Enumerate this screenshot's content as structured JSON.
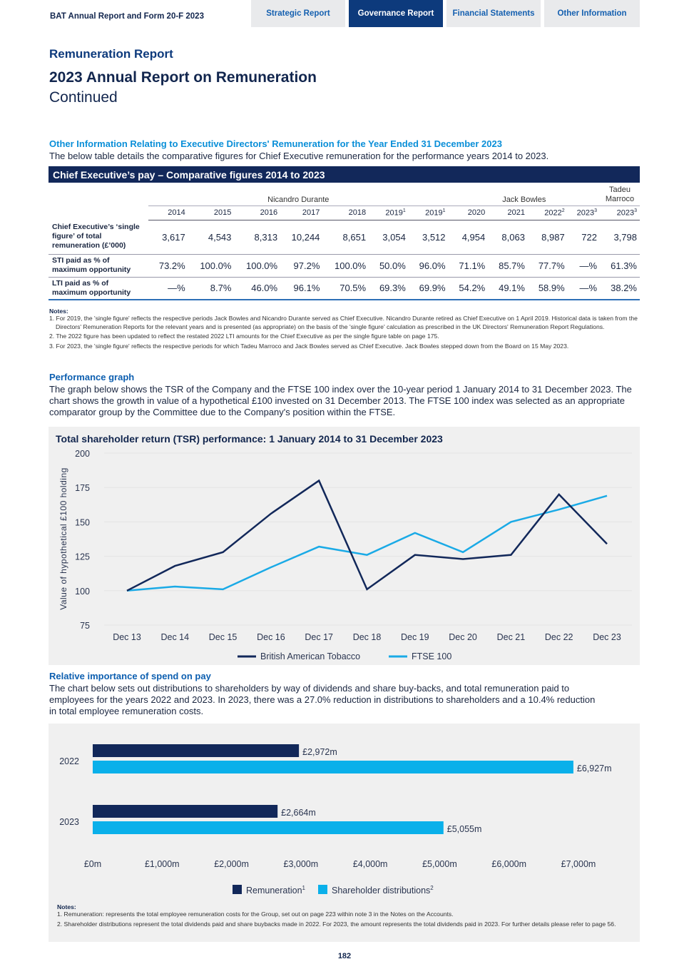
{
  "header": {
    "title": "BAT Annual Report and Form 20-F 2023",
    "tabs": [
      {
        "label": "Strategic Report",
        "active": false
      },
      {
        "label": "Governance Report",
        "active": true
      },
      {
        "label": "Financial Statements",
        "active": false
      },
      {
        "label": "Other Information",
        "active": false
      }
    ]
  },
  "section": "Remuneration Report",
  "title": "2023 Annual Report on Remuneration",
  "subtitle": "Continued",
  "other_info": {
    "heading": "Other Information Relating to Executive Directors' Remuneration for the Year Ended 31 December 2023",
    "text": "The below table details the comparative figures for Chief Executive remuneration for the performance years 2014 to 2023."
  },
  "table": {
    "title": "Chief Executive’s pay – Comparative figures 2014 to 2023",
    "names": [
      "Nicandro Durante",
      "Jack Bowles",
      "Tadeu Marroco"
    ],
    "years": [
      [
        "2014",
        ""
      ],
      [
        "2015",
        ""
      ],
      [
        "2016",
        ""
      ],
      [
        "2017",
        ""
      ],
      [
        "2018",
        ""
      ],
      [
        "2019",
        "1"
      ],
      [
        "2019",
        "1"
      ],
      [
        "2020",
        ""
      ],
      [
        "2021",
        ""
      ],
      [
        "2022",
        "2"
      ],
      [
        "2023",
        "3"
      ],
      [
        "2023",
        "3"
      ]
    ],
    "rows": [
      {
        "label": "Chief Executive’s ‘single figure’ of total remuneration (£’000)",
        "values": [
          "3,617",
          "4,543",
          "8,313",
          "10,244",
          "8,651",
          "3,054",
          "3,512",
          "4,954",
          "8,063",
          "8,987",
          "722",
          "3,798"
        ]
      },
      {
        "label": "STI paid as % of maximum opportunity",
        "values": [
          "73.2%",
          "100.0%",
          "100.0%",
          "97.2%",
          "100.0%",
          "50.0%",
          "96.0%",
          "71.1%",
          "85.7%",
          "77.7%",
          "—%",
          "61.3%"
        ]
      },
      {
        "label": "LTI paid as % of maximum opportunity",
        "values": [
          "—%",
          "8.7%",
          "46.0%",
          "96.1%",
          "70.5%",
          "69.3%",
          "69.9%",
          "54.2%",
          "49.1%",
          "58.9%",
          "—%",
          "38.2%"
        ]
      }
    ]
  },
  "table_notes": {
    "heading": "Notes:",
    "items": [
      "1. For 2019, the 'single figure' reflects the respective periods Jack Bowles and Nicandro Durante served as Chief Executive. Nicandro Durante retired as Chief Executive on 1 April 2019. Historical data is taken from the Directors' Remuneration Reports for the relevant years and is presented (as appropriate) on the basis of the 'single figure' calculation as prescribed in the UK Directors' Remuneration Report Regulations.",
      "2. The 2022 figure has been updated to reflect the restated 2022 LTI amounts for the Chief Executive as per the single figure table on page 175.",
      "3. For 2023, the 'single figure' reflects the respective periods for which Tadeu Marroco and Jack Bowles served as Chief Executive. Jack Bowles stepped down from the Board on 15 May 2023."
    ]
  },
  "performance": {
    "heading": "Performance graph",
    "text": "The graph below shows the TSR of the Company and the FTSE 100 index over the 10-year period 1 January 2014 to 31 December 2023. The chart shows the growth in value of a hypothetical £100 invested on 31 December 2013. The FTSE 100 index was selected as an appropriate comparator group by the Committee due to the Company's position within the FTSE."
  },
  "spend": {
    "heading": "Relative importance of spend on pay",
    "text": "The chart below sets out distributions to shareholders by way of dividends and share buy-backs, and total remuneration paid to employees for the years 2022 and 2023. In 2023, there was a 27.0% reduction in distributions to shareholders and a 10.4% reduction in total employee remuneration costs."
  },
  "chart_data": [
    {
      "type": "line",
      "title": "Total shareholder return (TSR) performance: 1 January 2014 to 31 December 2023",
      "ylabel": "Value of hypothetical £100 holding",
      "xlabel": "",
      "ylim": [
        75,
        200
      ],
      "yticks": [
        "75",
        "100",
        "125",
        "150",
        "175",
        "200"
      ],
      "grid": true,
      "legend": "bottom",
      "x": [
        "Dec 13",
        "Dec 14",
        "Dec 15",
        "Dec 16",
        "Dec 17",
        "Dec 18",
        "Dec 19",
        "Dec 20",
        "Dec 21",
        "Dec 22",
        "Dec 23"
      ],
      "series": [
        {
          "name": "British American Tobacco",
          "color": "#12285a",
          "values": [
            100,
            118,
            128,
            156,
            180,
            101,
            126,
            123,
            126,
            170,
            134
          ]
        },
        {
          "name": "FTSE 100",
          "color": "#1aaae6",
          "values": [
            100,
            103,
            101,
            117,
            132,
            126,
            142,
            128,
            150,
            159,
            169
          ]
        }
      ]
    },
    {
      "type": "bar",
      "orientation": "horizontal",
      "categories": [
        "2022",
        "2023"
      ],
      "xlim": [
        0,
        7000
      ],
      "xticks": [
        "£0m",
        "£1,000m",
        "£2,000m",
        "£3,000m",
        "£4,000m",
        "£5,000m",
        "£6,000m",
        "£7,000m"
      ],
      "legend": "bottom",
      "series": [
        {
          "name": "Remuneration",
          "sup": "1",
          "color": "#12285a",
          "values": [
            2972,
            2664
          ],
          "labels": [
            "£2,972m",
            "£2,664m"
          ]
        },
        {
          "name": "Shareholder distributions",
          "sup": "2",
          "color": "#0ab0ea",
          "values": [
            6927,
            5055
          ],
          "labels": [
            "£6,927m",
            "£5,055m"
          ]
        }
      ]
    }
  ],
  "spend_notes": {
    "heading": "Notes:",
    "items": [
      "1. Remuneration: represents the total employee remuneration costs for the Group, set out on page 223 within note 3 in the Notes on the Accounts.",
      "2. Shareholder distributions represent the total dividends paid and share buybacks made in 2022. For 2023, the amount represents the total dividends paid in 2023. For further details please refer to page 56."
    ]
  },
  "page_number": "182"
}
